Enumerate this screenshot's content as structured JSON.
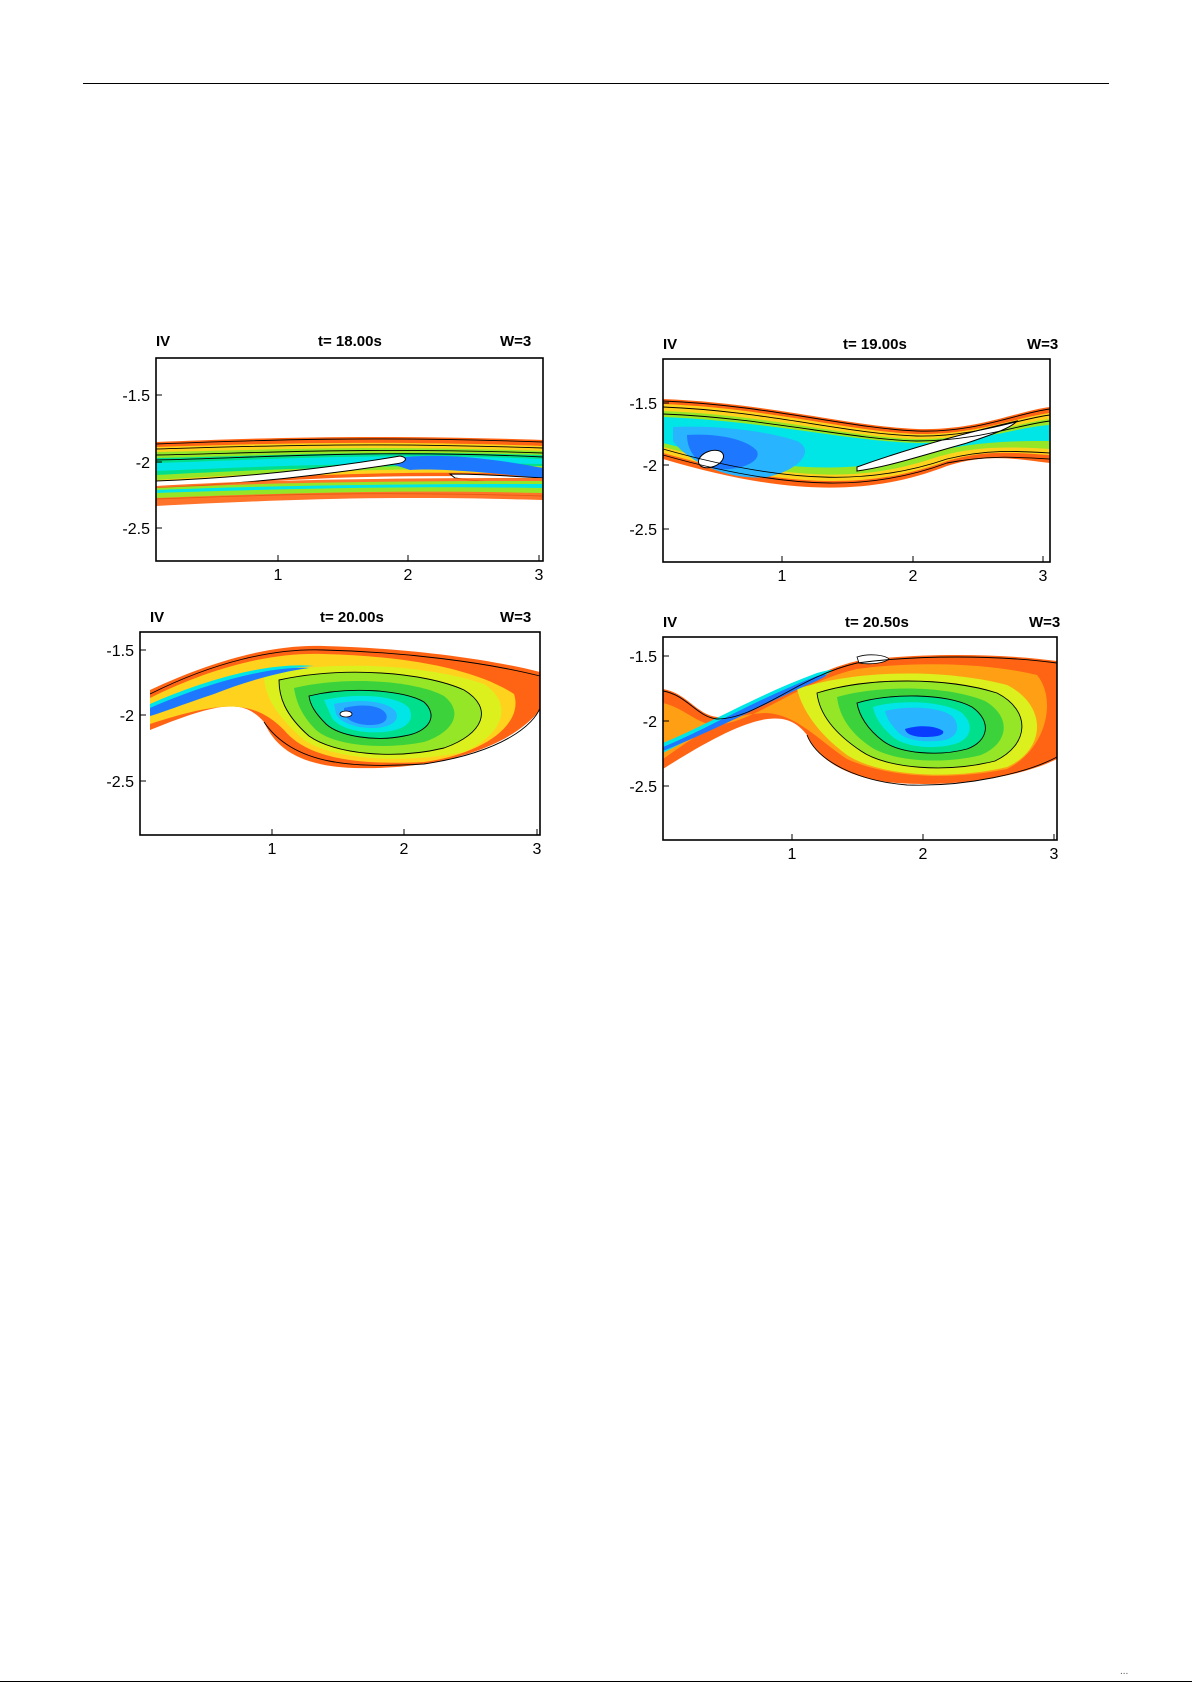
{
  "figure": {
    "panels": [
      {
        "id": "p1",
        "label": "IV",
        "time": "t= 18.00s",
        "weight": "W=3",
        "yticks": [
          "-1.5",
          "-2",
          "-2.5"
        ],
        "xticks": [
          "1",
          "2",
          "3"
        ]
      },
      {
        "id": "p2",
        "label": "IV",
        "time": "t= 19.00s",
        "weight": "W=3",
        "yticks": [
          "-1.5",
          "-2",
          "-2.5"
        ],
        "xticks": [
          "1",
          "2",
          "3"
        ]
      },
      {
        "id": "p3",
        "label": "IV",
        "time": "t= 20.00s",
        "weight": "W=3",
        "yticks": [
          "-1.5",
          "-2",
          "-2.5"
        ],
        "xticks": [
          "1",
          "2",
          "3"
        ]
      },
      {
        "id": "p4",
        "label": "IV",
        "time": "t= 20.50s",
        "weight": "W=3",
        "yticks": [
          "-1.5",
          "-2",
          "-2.5"
        ],
        "xticks": [
          "1",
          "2",
          "3"
        ]
      }
    ],
    "colormap": [
      "#0a3cff",
      "#1e78ff",
      "#28b4ff",
      "#00e6e6",
      "#00e08c",
      "#3cd23c",
      "#96e628",
      "#dcf01e",
      "#ffd21e",
      "#ffa014",
      "#ff6414",
      "#f03c0a"
    ],
    "footer_text": "..."
  }
}
